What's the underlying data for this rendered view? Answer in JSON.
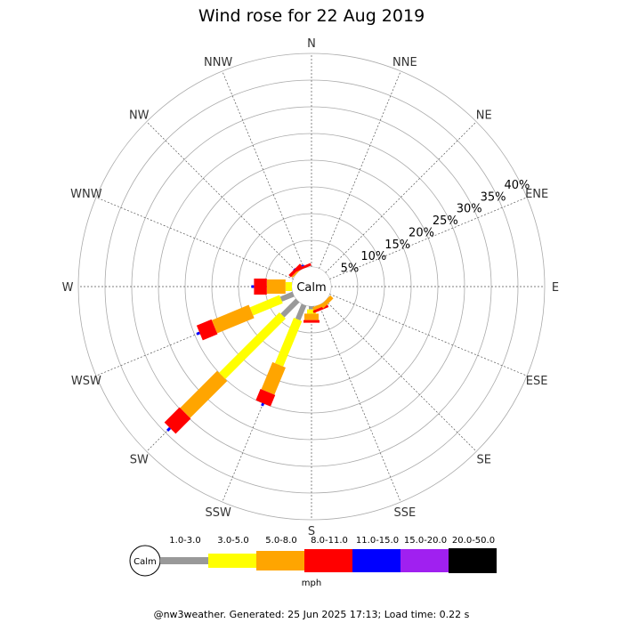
{
  "chart_data": {
    "type": "wind-rose",
    "title": "Wind rose for 22 Aug 2019",
    "directions": [
      "N",
      "NNE",
      "NE",
      "ENE",
      "E",
      "ESE",
      "SE",
      "SSE",
      "S",
      "SSW",
      "SW",
      "WSW",
      "W",
      "WNW",
      "NW",
      "NNW"
    ],
    "radial_ticks": [
      "5%",
      "10%",
      "15%",
      "20%",
      "25%",
      "30%",
      "35%",
      "40%"
    ],
    "radial_values": [
      5,
      10,
      15,
      20,
      25,
      30,
      35,
      40
    ],
    "calm_label": "Calm",
    "speed_bins": [
      "1.0-3.0",
      "3.0-5.0",
      "5.0-8.0",
      "8.0-11.0",
      "11.0-15.0",
      "15.0-20.0",
      "20.0-50.0"
    ],
    "unit": "mph",
    "colors": [
      "#999999",
      "#ffff00",
      "#ffa500",
      "#ff0000",
      "#0000ff",
      "#a020f0",
      "#000000"
    ],
    "series": [
      {
        "direction": "NW",
        "values": [
          0,
          0,
          0.3,
          0.6,
          0.1,
          0,
          0
        ]
      },
      {
        "direction": "NNW",
        "values": [
          0,
          0,
          0,
          0.5,
          0.2,
          0,
          0
        ]
      },
      {
        "direction": "W",
        "values": [
          0,
          1.2,
          3.5,
          2.4,
          0.5,
          0,
          0
        ]
      },
      {
        "direction": "WSW",
        "values": [
          2.5,
          6.0,
          7.5,
          3.0,
          0.6,
          0,
          0
        ]
      },
      {
        "direction": "SW",
        "values": [
          4.0,
          16.0,
          9.8,
          4.0,
          0.7,
          0,
          0
        ]
      },
      {
        "direction": "SSW",
        "values": [
          3.0,
          9.2,
          5.5,
          2.3,
          0.5,
          0,
          0
        ]
      },
      {
        "direction": "S",
        "values": [
          0.6,
          0.8,
          1.2,
          0.5,
          0,
          0,
          0
        ]
      },
      {
        "direction": "SSE",
        "values": [
          0,
          0,
          0.6,
          0.5,
          0,
          0,
          0
        ]
      },
      {
        "direction": "SE",
        "values": [
          0,
          0,
          0.8,
          0,
          0,
          0,
          0
        ]
      }
    ]
  },
  "footer": "@nw3weather. Generated: 25 Jun 2025 17:13; Load time: 0.22 s"
}
